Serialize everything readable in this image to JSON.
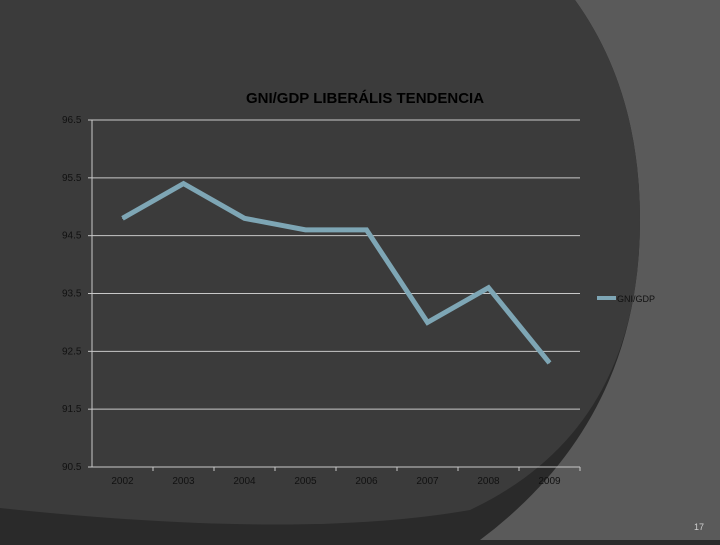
{
  "slide": {
    "page_number": "17"
  },
  "colors": {
    "background": "#2a2a2a",
    "swoosh_light": "#5c5c5c",
    "plot_panel": "#3a3a3a",
    "line": "#7ea6b5",
    "grid": "#c8c8c8"
  },
  "chart_data": {
    "type": "line",
    "title": "GNI/GDP LIBERÁLIS TENDENCIA",
    "categories": [
      "2002",
      "2003",
      "2004",
      "2005",
      "2006",
      "2007",
      "2008",
      "2009"
    ],
    "series": [
      {
        "name": "GNI/GDP",
        "values": [
          94.8,
          95.4,
          94.8,
          94.6,
          94.6,
          93.0,
          93.6,
          92.3
        ]
      }
    ],
    "yticks": [
      "96.5",
      "95.5",
      "94.5",
      "93.5",
      "92.5",
      "91.5",
      "90.5"
    ],
    "ylim": [
      90.5,
      96.5
    ],
    "xlabel": "",
    "ylabel": "",
    "grid": true,
    "legend_position": "right"
  }
}
